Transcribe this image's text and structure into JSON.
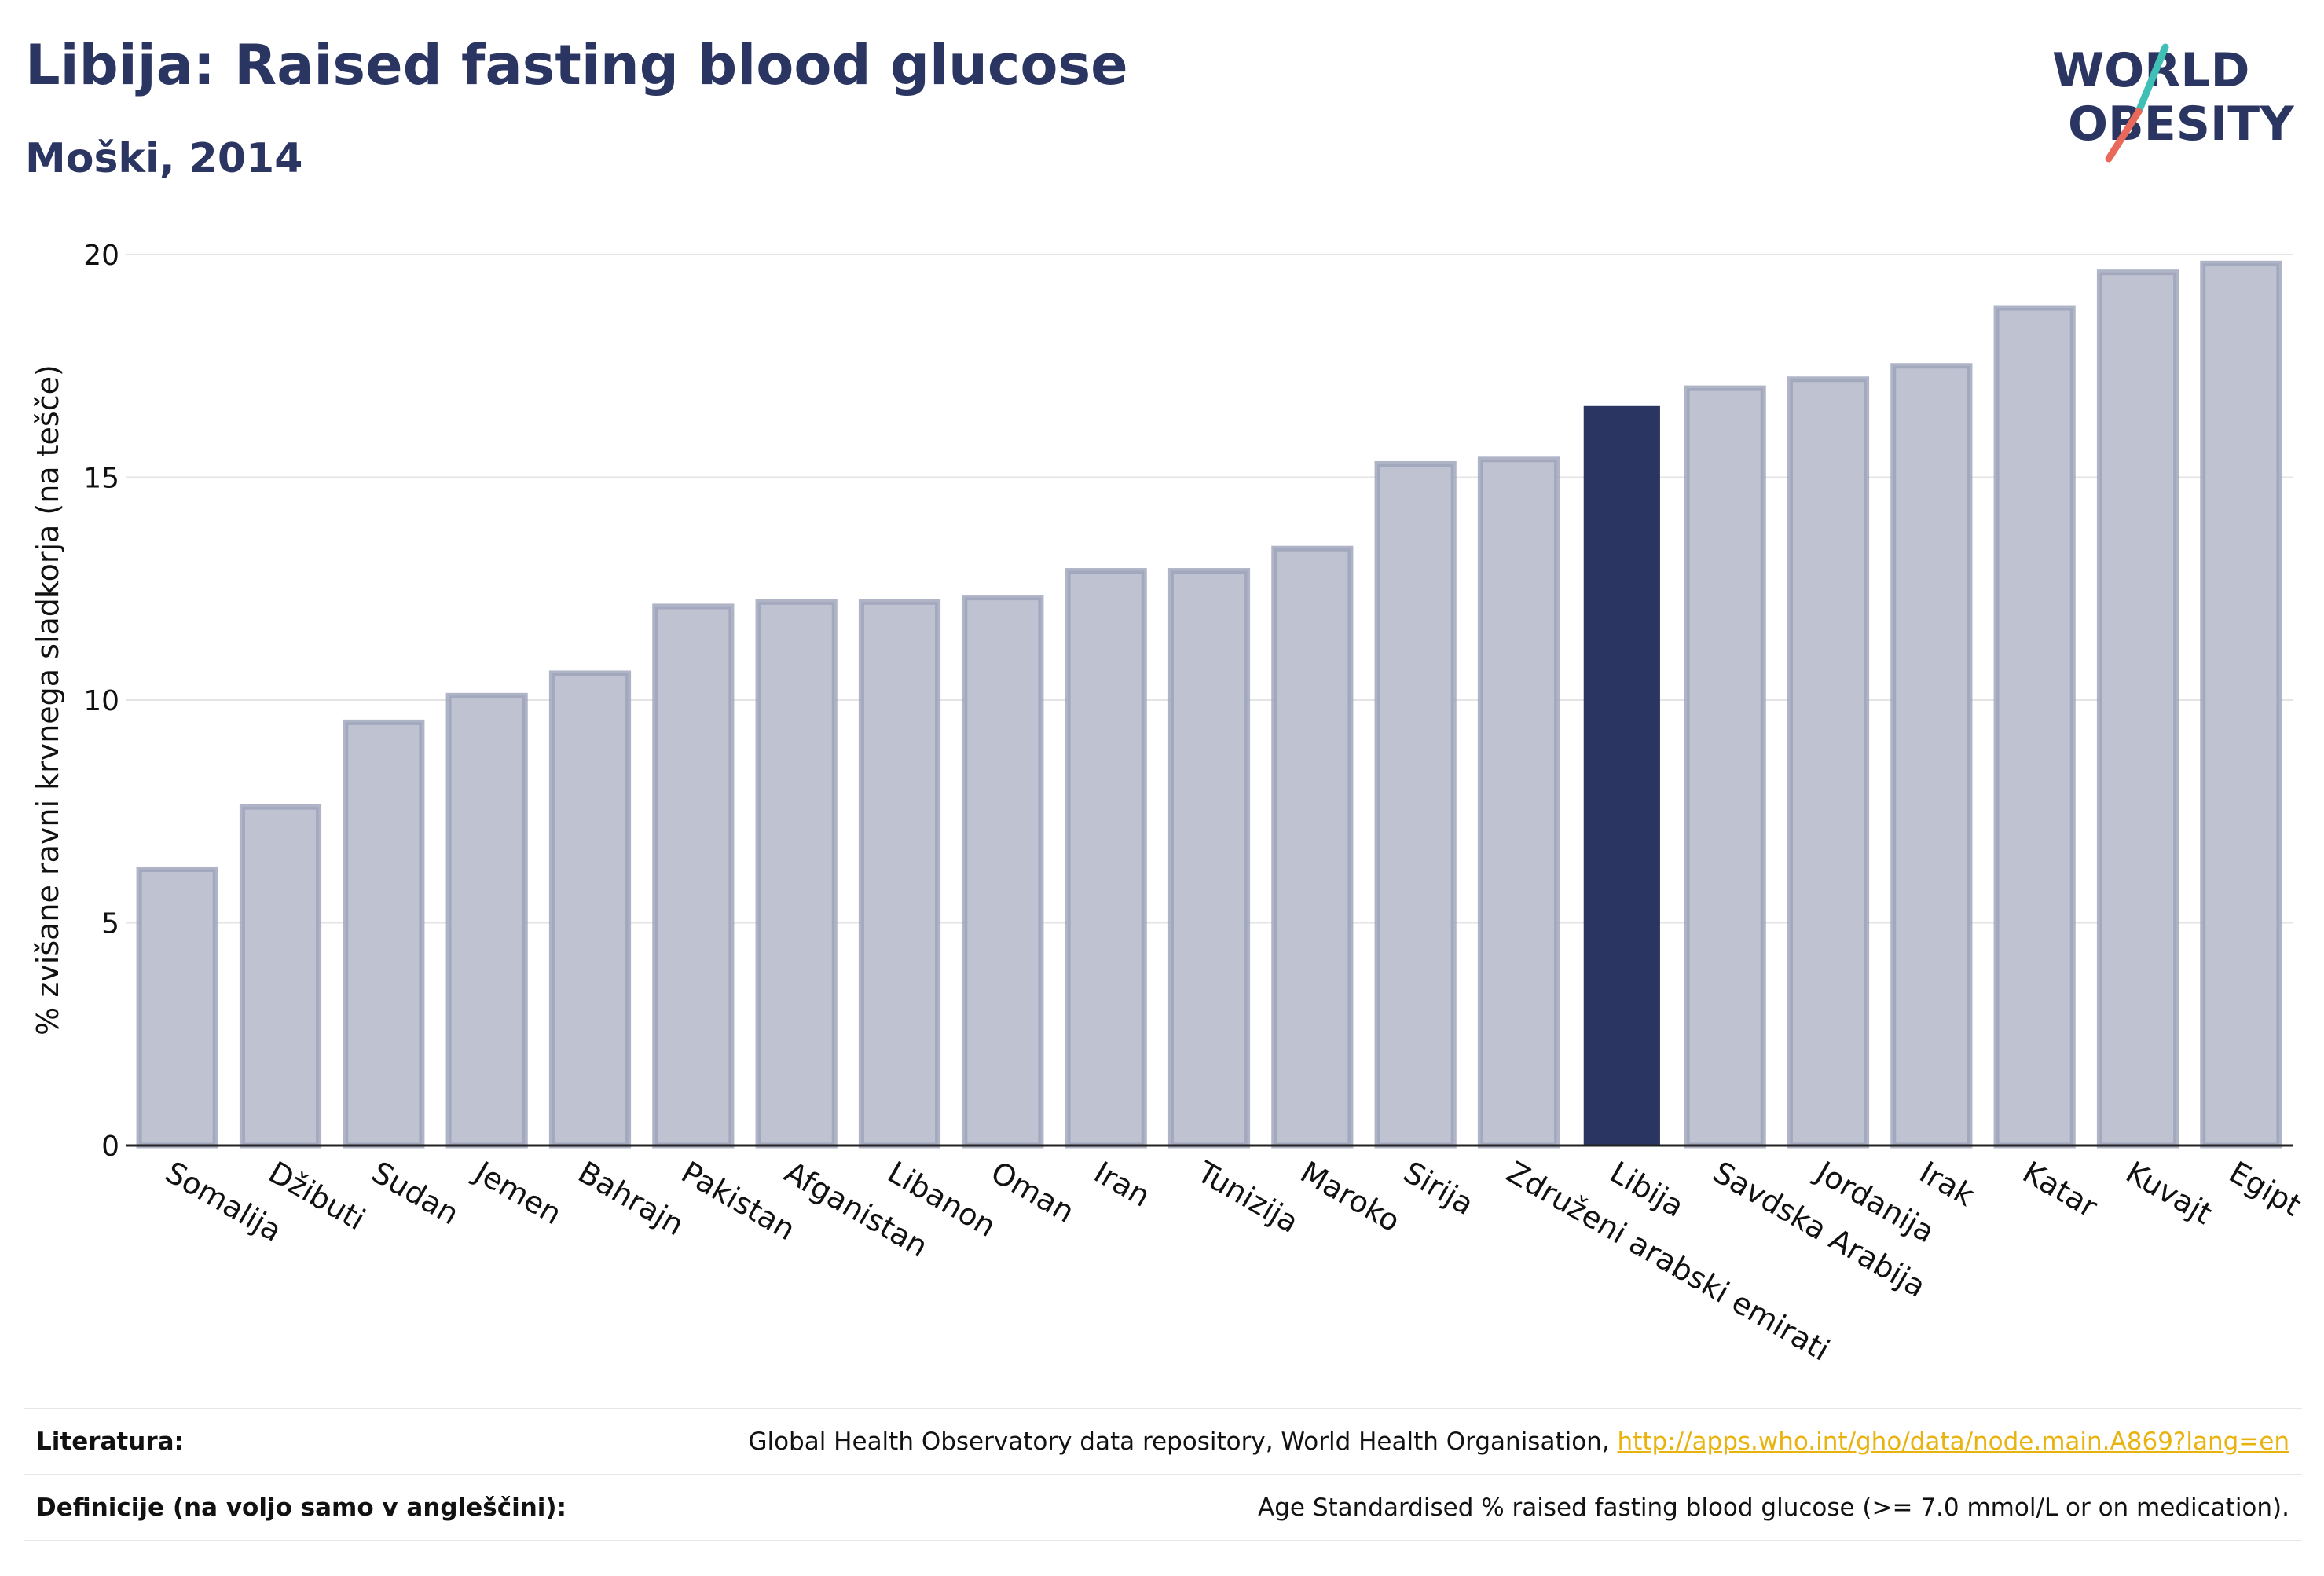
{
  "header": {
    "title": "Libija: Raised fasting blood glucose",
    "subtitle": "Moški, 2014"
  },
  "logo": {
    "line1": "WORLD",
    "line2": "OBESITY",
    "colors": {
      "text": "#2b3561",
      "slash_teal": "#3fbfb5",
      "slash_red": "#e8695a"
    }
  },
  "chart_data": {
    "type": "bar",
    "title": "Libija: Raised fasting blood glucose",
    "subtitle": "Moški, 2014",
    "ylabel": "% zvišane ravni krvnega sladkorja (na tešče)",
    "xlabel": "",
    "ylim": [
      0,
      20
    ],
    "yticks": [
      0,
      5,
      10,
      15,
      20
    ],
    "grid": true,
    "highlight": "Libija",
    "colors": {
      "bar": "#bfc2d0",
      "bar_border": "#9ba1b8",
      "highlight": "#2b3561"
    },
    "categories": [
      "Somalija",
      "Džibuti",
      "Sudan",
      "Jemen",
      "Bahrajn",
      "Pakistan",
      "Afganistan",
      "Libanon",
      "Oman",
      "Iran",
      "Tunizija",
      "Maroko",
      "Sirija",
      "Združeni arabski emirati",
      "Libija",
      "Savdska Arabija",
      "Jordanija",
      "Irak",
      "Katar",
      "Kuvajt",
      "Egipt"
    ],
    "values": [
      6.2,
      7.6,
      9.5,
      10.1,
      10.6,
      12.1,
      12.2,
      12.2,
      12.3,
      12.9,
      12.9,
      13.4,
      15.3,
      15.4,
      16.6,
      17.0,
      17.2,
      17.5,
      18.8,
      19.6,
      19.8
    ]
  },
  "references": {
    "source_label": "Literatura:",
    "source_text": "Global Health Observatory data repository, World Health Organisation,",
    "source_link": "http://apps.who.int/gho/data/node.main.A869?lang=en",
    "definition_label": "Definicije (na voljo samo v angleščini):",
    "definition_text": "Age Standardised % raised fasting blood glucose (>= 7.0 mmol/L or on medication)."
  }
}
